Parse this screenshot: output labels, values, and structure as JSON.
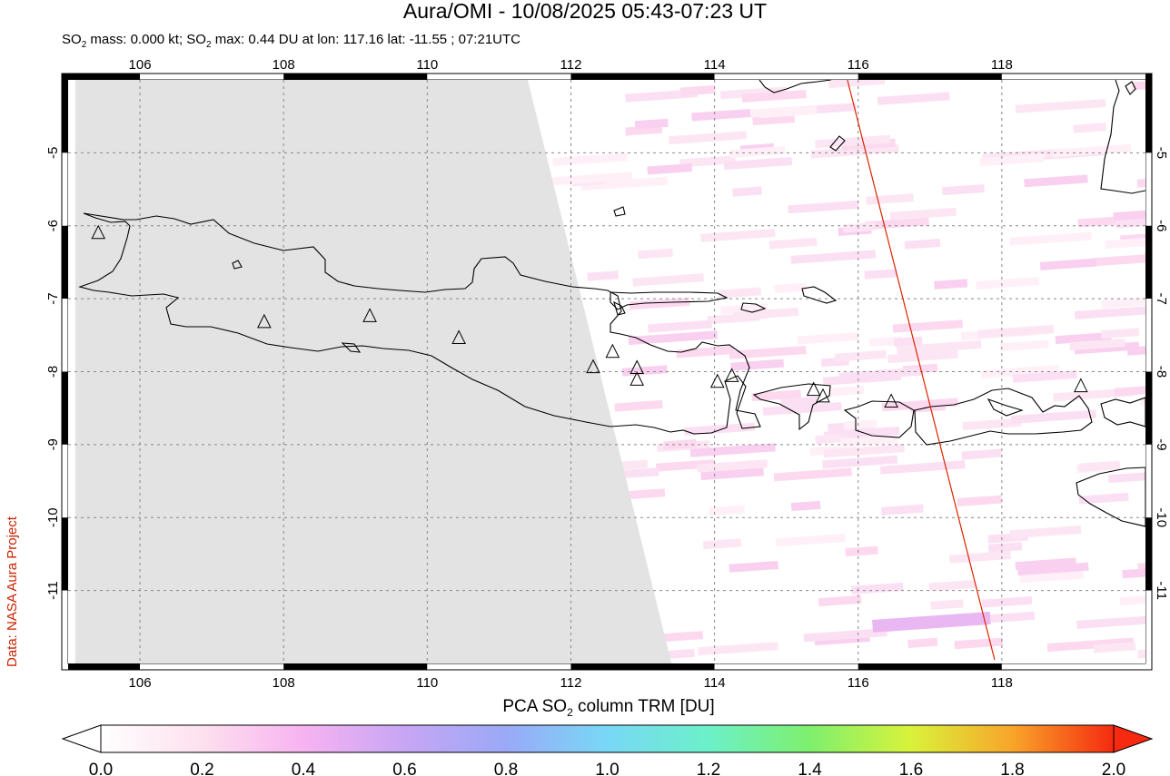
{
  "title": "Aura/OMI - 10/08/2025 05:43-07:23 UT",
  "subtitle": {
    "pre1": "SO",
    "sub1": "2",
    "mid": " mass: 0.000 kt; SO",
    "sub2": "2",
    "post": " max: 0.44 DU at lon: 117.16 lat: -11.55 ; 07:21UTC"
  },
  "credit": "Data: NASA Aura Project",
  "colorbar_title": {
    "pre": "PCA SO",
    "sub": "2",
    "post": " column TRM [DU]"
  },
  "map": {
    "lon_range": [
      105,
      120
    ],
    "lat_range": [
      -12,
      -4
    ],
    "lon_ticks": [
      106,
      108,
      110,
      112,
      114,
      116,
      118
    ],
    "lat_ticks": [
      -5,
      -6,
      -7,
      -8,
      -9,
      -10,
      -11
    ],
    "grid": true,
    "colors": {
      "no_data": "#e3e3e3",
      "coast": "#000000",
      "track": "#dd2200"
    },
    "no_data_region": [
      [
        105.1,
        -4
      ],
      [
        111.4,
        -4
      ],
      [
        113.4,
        -12
      ],
      [
        105.1,
        -12
      ]
    ],
    "orbit_track": [
      [
        115.85,
        -4
      ],
      [
        117.9,
        -11.95
      ]
    ],
    "volcanoes": [
      {
        "lon": 105.42,
        "lat": -6.1
      },
      {
        "lon": 107.73,
        "lat": -7.32
      },
      {
        "lon": 109.2,
        "lat": -7.24
      },
      {
        "lon": 110.44,
        "lat": -7.54
      },
      {
        "lon": 112.31,
        "lat": -7.94
      },
      {
        "lon": 112.58,
        "lat": -7.73
      },
      {
        "lon": 112.92,
        "lat": -7.95
      },
      {
        "lon": 112.92,
        "lat": -8.11
      },
      {
        "lon": 114.04,
        "lat": -8.14
      },
      {
        "lon": 114.24,
        "lat": -8.06
      },
      {
        "lon": 115.38,
        "lat": -8.25
      },
      {
        "lon": 115.51,
        "lat": -8.34
      },
      {
        "lon": 116.46,
        "lat": -8.41
      },
      {
        "lon": 119.1,
        "lat": -8.2
      }
    ]
  },
  "colorbar": {
    "ticks": [
      "0.0",
      "0.2",
      "0.4",
      "0.6",
      "0.8",
      "1.0",
      "1.2",
      "1.4",
      "1.6",
      "1.8",
      "2.0"
    ],
    "colors": [
      "#ffffff",
      "#fde0ee",
      "#f7b3f1",
      "#c7a6f4",
      "#9aa9f7",
      "#78d8f6",
      "#6cf0c9",
      "#7ef06e",
      "#d9f23a",
      "#f8a52a",
      "#f52a10"
    ]
  }
}
